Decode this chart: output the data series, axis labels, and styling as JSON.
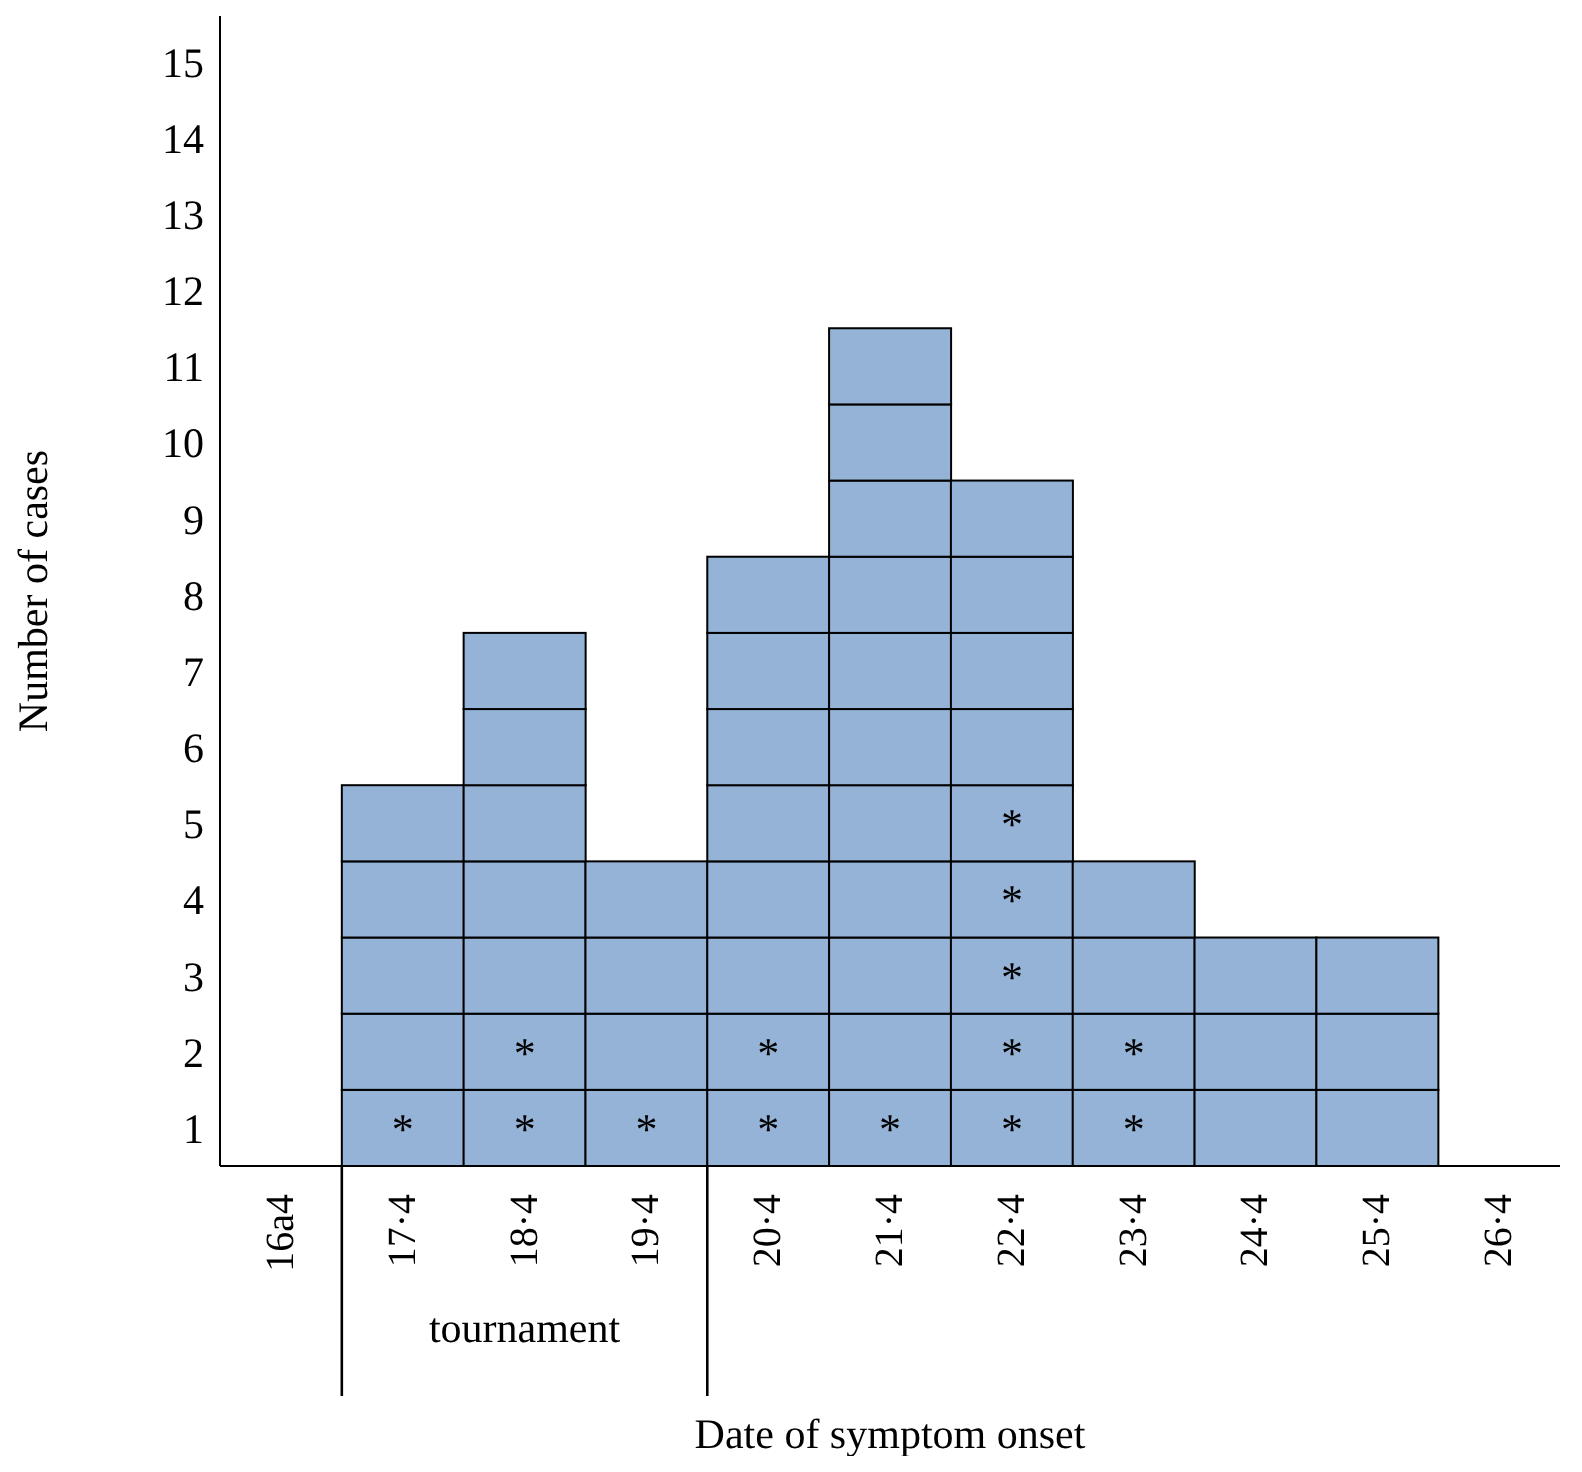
{
  "chart_data": {
    "type": "bar",
    "xlabel": "Date of symptom onset",
    "ylabel": "Number of cases",
    "categories": [
      "16a4",
      "17·4",
      "18·4",
      "19·4",
      "20·4",
      "21·4",
      "22·4",
      "23·4",
      "24·4",
      "25·4",
      "26·4"
    ],
    "stacked": true,
    "series": [
      {
        "color": "#95b3d7",
        "values": [
          null,
          1,
          1,
          1,
          1,
          1,
          1,
          1,
          1,
          1,
          null
        ],
        "value_labels": [
          null,
          "*",
          "*",
          "*",
          "*",
          "*",
          "*",
          "*",
          null,
          null,
          null
        ]
      },
      {
        "color": "#95b3d7",
        "values": [
          null,
          1,
          1,
          1,
          1,
          1,
          1,
          1,
          1,
          1,
          null
        ],
        "value_labels": [
          null,
          null,
          "*",
          null,
          "*",
          null,
          "*",
          "*",
          null,
          null,
          null
        ]
      },
      {
        "color": "#95b3d7",
        "values": [
          null,
          1,
          1,
          1,
          1,
          1,
          1,
          1,
          1,
          1,
          null
        ],
        "value_labels": [
          null,
          null,
          null,
          null,
          null,
          null,
          "*",
          null,
          null,
          null,
          null
        ]
      },
      {
        "color": "#95b3d7",
        "values": [
          null,
          1,
          1,
          1,
          1,
          1,
          1,
          1,
          null,
          null,
          null
        ],
        "value_labels": [
          null,
          null,
          null,
          null,
          null,
          null,
          "*",
          null,
          null,
          null,
          null
        ]
      },
      {
        "color": "#95b3d7",
        "values": [
          null,
          1,
          1,
          null,
          1,
          1,
          1,
          null,
          null,
          null,
          null
        ],
        "value_labels": [
          null,
          null,
          null,
          null,
          null,
          null,
          "*",
          null,
          null,
          null,
          null
        ]
      },
      {
        "color": "#95b3d7",
        "values": [
          null,
          null,
          1,
          null,
          1,
          1,
          1,
          null,
          null,
          null,
          null
        ]
      },
      {
        "color": "#95b3d7",
        "values": [
          null,
          null,
          1,
          null,
          1,
          1,
          1,
          null,
          null,
          null,
          null
        ]
      },
      {
        "color": "#95b3d7",
        "values": [
          null,
          null,
          null,
          null,
          1,
          1,
          1,
          null,
          null,
          null,
          null
        ]
      },
      {
        "color": "#95b3d7",
        "values": [
          null,
          null,
          null,
          null,
          null,
          1,
          1,
          null,
          null,
          null,
          null
        ]
      },
      {
        "color": "#95b3d7",
        "values": [
          null,
          null,
          null,
          null,
          null,
          1,
          null,
          null,
          null,
          null,
          null
        ]
      },
      {
        "color": "#95b3d7",
        "values": [
          null,
          null,
          null,
          null,
          null,
          1,
          null,
          null,
          null,
          null,
          null
        ]
      }
    ],
    "ylim": [
      0,
      15.1
    ],
    "yticks": [
      {
        "value": 0.5,
        "label": "1"
      },
      {
        "value": 1.5,
        "label": "2"
      },
      {
        "value": 2.5,
        "label": "3"
      },
      {
        "value": 3.5,
        "label": "4"
      },
      {
        "value": 4.5,
        "label": "5"
      },
      {
        "value": 5.5,
        "label": "6"
      },
      {
        "value": 6.5,
        "label": "7"
      },
      {
        "value": 7.5,
        "label": "8"
      },
      {
        "value": 8.5,
        "label": "9"
      },
      {
        "value": 9.5,
        "label": "10"
      },
      {
        "value": 10.5,
        "label": "11"
      },
      {
        "value": 11.5,
        "label": "12"
      },
      {
        "value": 12.5,
        "label": "13"
      },
      {
        "value": 13.5,
        "label": "14"
      },
      {
        "value": 14.5,
        "label": "15"
      }
    ],
    "annotations": [
      "tournament"
    ],
    "grid": false,
    "legend": false
  }
}
